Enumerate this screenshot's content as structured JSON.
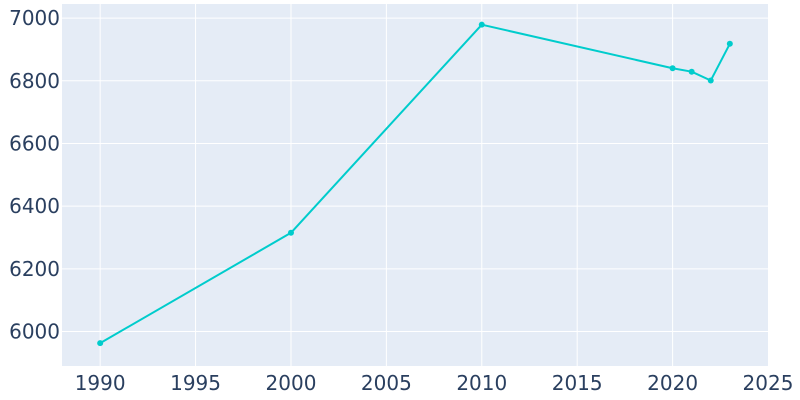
{
  "chart_data": {
    "type": "line",
    "title": "",
    "xlabel": "",
    "ylabel": "",
    "x": [
      1990,
      2000,
      2010,
      2020,
      2021,
      2022,
      2023
    ],
    "series": [
      {
        "values": [
          5963,
          6315,
          6979,
          6840,
          6829,
          6801,
          6918
        ],
        "color": "#00cccc",
        "markers": true
      }
    ],
    "xlim": [
      1988,
      2025
    ],
    "ylim": [
      5890,
      7045
    ],
    "xticks": [
      1990,
      1995,
      2000,
      2005,
      2010,
      2015,
      2020,
      2025
    ],
    "xtick_labels": [
      "1990",
      "1995",
      "2000",
      "2005",
      "2010",
      "2015",
      "2020",
      "2025"
    ],
    "yticks": [
      6000,
      6200,
      6400,
      6600,
      6800,
      7000
    ],
    "ytick_labels": [
      "6000",
      "6200",
      "6400",
      "6600",
      "6800",
      "7000"
    ],
    "grid": true,
    "legend": "none",
    "plot_background": "#e5ecf6",
    "grid_color": "#ffffff",
    "tick_label_color": "#2a3f5f"
  }
}
